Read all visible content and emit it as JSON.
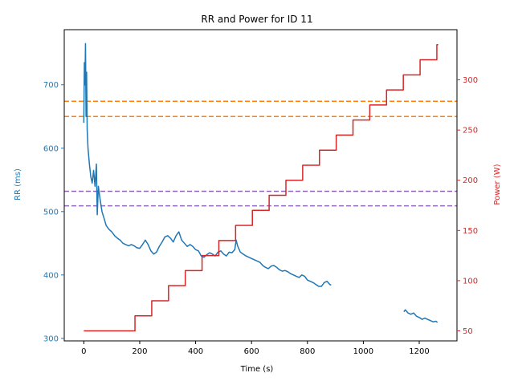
{
  "chart_data": {
    "type": "line",
    "title": "RR and Power for ID 11",
    "xlabel": "Time (s)",
    "ylabel_left": "RR (ms)",
    "ylabel_right": "Power (W)",
    "xlim": [
      -70,
      1335
    ],
    "ylim_left": [
      296,
      787
    ],
    "ylim_right": [
      40,
      350
    ],
    "x_ticks": [
      0,
      200,
      400,
      600,
      800,
      1000,
      1200
    ],
    "y_left_ticks": [
      300,
      400,
      500,
      600,
      700
    ],
    "y_right_ticks": [
      50,
      100,
      150,
      200,
      250,
      300
    ],
    "grid": false,
    "colors": {
      "rr": "#1f77b4",
      "power": "#d62728",
      "orange_ref": "#ff7f0e",
      "purple_ref": "#9467bd",
      "axis": "#000000"
    },
    "reference_lines_rr": [
      {
        "value": 674,
        "color": "#ff7f0e"
      },
      {
        "value": 650,
        "color": "#ff7f0e"
      },
      {
        "value": 532,
        "color": "#9467bd"
      },
      {
        "value": 509,
        "color": "#9467bd"
      }
    ],
    "series": [
      {
        "axis": "left",
        "color": "#1f77b4",
        "points": [
          [
            0,
            640
          ],
          [
            2,
            735
          ],
          [
            4,
            700
          ],
          [
            6,
            765
          ],
          [
            8,
            650
          ],
          [
            10,
            720
          ],
          [
            12,
            630
          ],
          [
            15,
            600
          ],
          [
            20,
            575
          ],
          [
            25,
            555
          ],
          [
            30,
            545
          ],
          [
            35,
            565
          ],
          [
            40,
            540
          ],
          [
            45,
            575
          ],
          [
            48,
            495
          ],
          [
            52,
            540
          ],
          [
            58,
            520
          ],
          [
            65,
            500
          ],
          [
            72,
            490
          ],
          [
            80,
            478
          ],
          [
            90,
            472
          ],
          [
            100,
            468
          ],
          [
            110,
            462
          ],
          [
            120,
            458
          ],
          [
            130,
            455
          ],
          [
            140,
            450
          ],
          [
            150,
            448
          ],
          [
            160,
            446
          ],
          [
            170,
            448
          ],
          [
            180,
            446
          ],
          [
            190,
            443
          ],
          [
            200,
            442
          ],
          [
            210,
            448
          ],
          [
            220,
            455
          ],
          [
            230,
            448
          ],
          [
            240,
            438
          ],
          [
            250,
            433
          ],
          [
            260,
            436
          ],
          [
            270,
            445
          ],
          [
            280,
            452
          ],
          [
            290,
            460
          ],
          [
            300,
            462
          ],
          [
            310,
            458
          ],
          [
            320,
            452
          ],
          [
            330,
            462
          ],
          [
            340,
            468
          ],
          [
            350,
            455
          ],
          [
            360,
            450
          ],
          [
            370,
            445
          ],
          [
            380,
            448
          ],
          [
            390,
            445
          ],
          [
            400,
            440
          ],
          [
            410,
            438
          ],
          [
            420,
            430
          ],
          [
            430,
            428
          ],
          [
            440,
            432
          ],
          [
            450,
            435
          ],
          [
            460,
            433
          ],
          [
            470,
            430
          ],
          [
            480,
            436
          ],
          [
            490,
            438
          ],
          [
            500,
            433
          ],
          [
            510,
            430
          ],
          [
            520,
            436
          ],
          [
            530,
            435
          ],
          [
            540,
            440
          ],
          [
            545,
            455
          ],
          [
            550,
            446
          ],
          [
            560,
            436
          ],
          [
            570,
            433
          ],
          [
            580,
            430
          ],
          [
            590,
            428
          ],
          [
            600,
            426
          ],
          [
            610,
            424
          ],
          [
            620,
            422
          ],
          [
            630,
            420
          ],
          [
            640,
            415
          ],
          [
            650,
            412
          ],
          [
            660,
            410
          ],
          [
            670,
            414
          ],
          [
            680,
            415
          ],
          [
            690,
            412
          ],
          [
            700,
            408
          ],
          [
            710,
            406
          ],
          [
            720,
            407
          ],
          [
            730,
            405
          ],
          [
            740,
            402
          ],
          [
            750,
            400
          ],
          [
            760,
            398
          ],
          [
            770,
            396
          ],
          [
            780,
            400
          ],
          [
            790,
            398
          ],
          [
            800,
            392
          ],
          [
            810,
            390
          ],
          [
            820,
            388
          ],
          [
            830,
            385
          ],
          [
            840,
            382
          ],
          [
            850,
            382
          ],
          [
            860,
            388
          ],
          [
            870,
            390
          ],
          [
            880,
            385
          ],
          [
            885,
            384
          ],
          null,
          [
            1145,
            342
          ],
          [
            1150,
            345
          ],
          [
            1160,
            340
          ],
          [
            1170,
            338
          ],
          [
            1180,
            340
          ],
          [
            1190,
            335
          ],
          [
            1200,
            333
          ],
          [
            1210,
            330
          ],
          [
            1220,
            332
          ],
          [
            1230,
            330
          ],
          [
            1240,
            328
          ],
          [
            1250,
            326
          ],
          [
            1260,
            327
          ],
          [
            1265,
            325
          ]
        ]
      },
      {
        "axis": "right",
        "color": "#d62728",
        "points": [
          [
            0,
            50
          ],
          [
            183,
            50
          ],
          [
            183,
            65
          ],
          [
            243,
            65
          ],
          [
            243,
            80
          ],
          [
            303,
            80
          ],
          [
            303,
            95
          ],
          [
            363,
            95
          ],
          [
            363,
            110
          ],
          [
            423,
            110
          ],
          [
            423,
            125
          ],
          [
            483,
            125
          ],
          [
            483,
            140
          ],
          [
            543,
            140
          ],
          [
            543,
            155
          ],
          [
            603,
            155
          ],
          [
            603,
            170
          ],
          [
            663,
            170
          ],
          [
            663,
            185
          ],
          [
            723,
            185
          ],
          [
            723,
            200
          ],
          [
            783,
            200
          ],
          [
            783,
            215
          ],
          [
            843,
            215
          ],
          [
            843,
            230
          ],
          [
            903,
            230
          ],
          [
            903,
            245
          ],
          [
            963,
            245
          ],
          [
            963,
            260
          ],
          [
            1023,
            260
          ],
          [
            1023,
            275
          ],
          [
            1083,
            275
          ],
          [
            1083,
            290
          ],
          [
            1143,
            290
          ],
          [
            1143,
            305
          ],
          [
            1203,
            305
          ],
          [
            1203,
            320
          ],
          [
            1263,
            320
          ],
          [
            1263,
            335
          ],
          [
            1268,
            335
          ]
        ]
      }
    ]
  }
}
